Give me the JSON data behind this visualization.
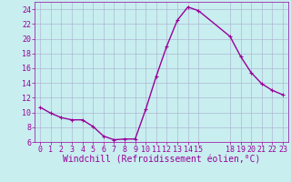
{
  "x": [
    0,
    1,
    2,
    3,
    4,
    5,
    6,
    7,
    8,
    9,
    10,
    11,
    12,
    13,
    14,
    15,
    18,
    19,
    20,
    21,
    22,
    23
  ],
  "y": [
    10.7,
    9.9,
    9.3,
    9.0,
    9.0,
    8.1,
    6.8,
    6.3,
    6.4,
    6.4,
    10.4,
    14.9,
    19.0,
    22.5,
    24.3,
    23.8,
    20.3,
    17.6,
    15.4,
    13.9,
    13.0,
    12.4
  ],
  "line_color": "#990099",
  "marker": "+",
  "marker_size": 3,
  "bg_color": "#c8eef0",
  "grid_color": "#aaaacc",
  "xlabel": "Windchill (Refroidissement éolien,°C)",
  "xlim": [
    -0.5,
    23.5
  ],
  "ylim": [
    6,
    25
  ],
  "yticks": [
    6,
    8,
    10,
    12,
    14,
    16,
    18,
    20,
    22,
    24
  ],
  "xticks": [
    0,
    1,
    2,
    3,
    4,
    5,
    6,
    7,
    8,
    9,
    10,
    11,
    12,
    13,
    14,
    15,
    18,
    19,
    20,
    21,
    22,
    23
  ],
  "xlabel_fontsize": 7,
  "tick_fontsize": 6,
  "label_color": "#990099",
  "linewidth": 1.0
}
